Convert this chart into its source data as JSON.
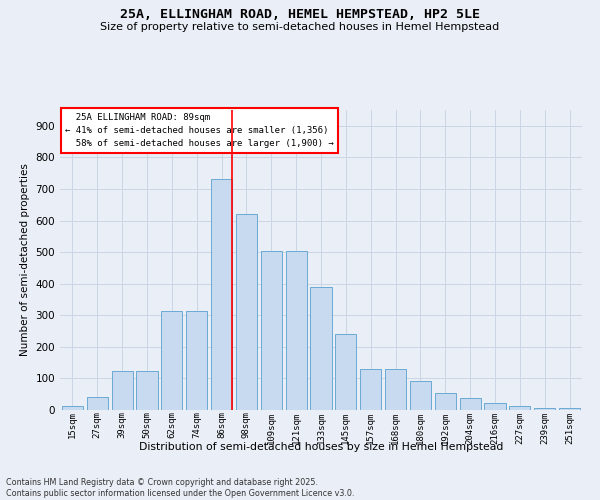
{
  "title": "25A, ELLINGHAM ROAD, HEMEL HEMPSTEAD, HP2 5LE",
  "subtitle": "Size of property relative to semi-detached houses in Hemel Hempstead",
  "xlabel": "Distribution of semi-detached houses by size in Hemel Hempstead",
  "ylabel": "Number of semi-detached properties",
  "footnote": "Contains HM Land Registry data © Crown copyright and database right 2025.\nContains public sector information licensed under the Open Government Licence v3.0.",
  "categories": [
    "15sqm",
    "27sqm",
    "39sqm",
    "50sqm",
    "62sqm",
    "74sqm",
    "86sqm",
    "98sqm",
    "109sqm",
    "121sqm",
    "133sqm",
    "145sqm",
    "157sqm",
    "168sqm",
    "180sqm",
    "192sqm",
    "204sqm",
    "216sqm",
    "227sqm",
    "239sqm",
    "251sqm"
  ],
  "values": [
    12,
    40,
    125,
    125,
    315,
    315,
    730,
    620,
    505,
    505,
    390,
    240,
    130,
    130,
    93,
    53,
    37,
    22,
    12,
    5,
    5
  ],
  "bar_color": "#c8daf0",
  "bar_edge_color": "#6aaad4",
  "grid_color": "#ccd5e3",
  "background_color": "#eaeff7",
  "vline_x_index": 6,
  "vline_color": "red",
  "smaller_pct": 41,
  "smaller_count": 1356,
  "larger_pct": 58,
  "larger_count": 1900,
  "legend_title": "25A ELLINGHAM ROAD: 89sqm",
  "ylim": [
    0,
    950
  ],
  "yticks": [
    0,
    100,
    200,
    300,
    400,
    500,
    600,
    700,
    800,
    900
  ],
  "title_fontsize": 9.5,
  "subtitle_fontsize": 8,
  "footnote_fontsize": 5.8
}
